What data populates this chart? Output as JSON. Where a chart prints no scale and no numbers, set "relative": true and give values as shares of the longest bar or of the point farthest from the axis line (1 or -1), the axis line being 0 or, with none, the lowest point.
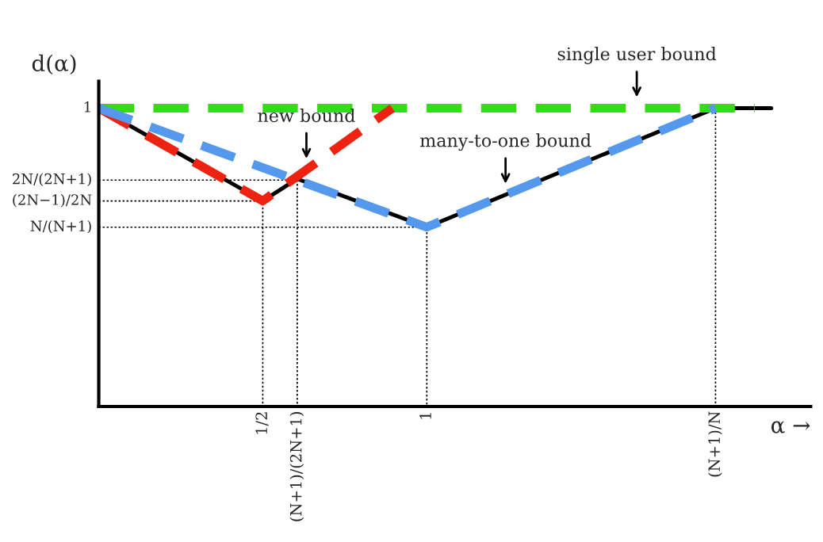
{
  "chart_data": {
    "type": "line",
    "xlabel": "α →",
    "ylabel": "d(α)",
    "relative": true,
    "xlim": [
      0,
      2.17
    ],
    "xticks": [
      {
        "value": 0.5,
        "label": "1/2"
      },
      {
        "value": 0.605,
        "label": "(N+1)/(2N+1)"
      },
      {
        "value": 1,
        "label": "1"
      },
      {
        "value": 1.88,
        "label": "(N+1)/N"
      }
    ],
    "grid": false,
    "legend": false,
    "marker": "none",
    "series": [
      {
        "color": "#000000",
        "line_style": "dotted",
        "x": [
          0,
          0.5,
          0.5
        ],
        "values": [
          0.689,
          0.689,
          0
        ]
      },
      {
        "color": "#000000",
        "line_style": "dotted",
        "x": [
          0,
          0.605,
          0.605
        ],
        "values": [
          0.759,
          0.759,
          0
        ]
      },
      {
        "color": "#000000",
        "line_style": "dotted",
        "x": [
          0,
          1,
          1
        ],
        "values": [
          0.601,
          0.601,
          0
        ]
      },
      {
        "color": "#000000",
        "line_style": "dotted",
        "x": [
          1.88,
          1.88
        ],
        "values": [
          1,
          0
        ]
      },
      {
        "color": "#000000",
        "line_style": "solid",
        "x": [
          0,
          0.5,
          0.605,
          1,
          1.88,
          2.05
        ],
        "values": [
          1,
          0.689,
          0.763,
          0.601,
          1,
          1
        ]
      },
      {
        "color": "#33dd11",
        "line_style": "dashed",
        "x": [
          0,
          2.0
        ],
        "values": [
          1,
          1
        ]
      },
      {
        "color": "#ee2211",
        "line_style": "dashed",
        "x": [
          0,
          0.5,
          0.895
        ],
        "values": [
          1,
          0.689,
          1
        ]
      },
      {
        "color": "#5599ee",
        "line_style": "dashed",
        "x": [
          0,
          1,
          1.88
        ],
        "values": [
          1,
          0.601,
          1
        ]
      }
    ],
    "annotations": [
      {
        "text": "1",
        "x": 0,
        "y": 1
      },
      {
        "text": "2N/(2N+1)",
        "x": 0,
        "y": 0.759
      },
      {
        "text": "(2N−1)/2N",
        "x": 0,
        "y": 0.689
      },
      {
        "text": "N/(N+1)",
        "x": 0,
        "y": 0.601
      },
      {
        "text": "single user bound",
        "x": 1.64,
        "y": 1
      },
      {
        "text": "new bound",
        "x": 0.633,
        "y": 0.794
      },
      {
        "text": "many-to-one bound",
        "x": 1.24,
        "y": 0.71
      }
    ]
  }
}
